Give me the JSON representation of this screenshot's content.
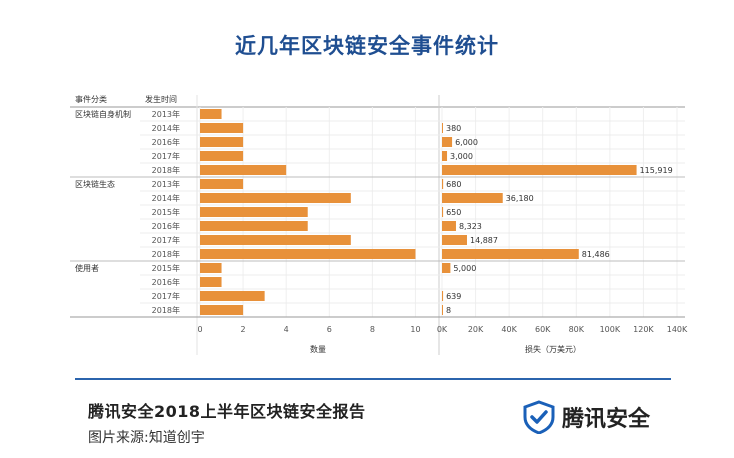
{
  "chart_data": {
    "type": "bar",
    "title": "近几年区块链安全事件统计",
    "row_headers": [
      "事件分类",
      "发生时间"
    ],
    "groups": [
      {
        "name": "区块链自身机制",
        "years": [
          "2013年",
          "2014年",
          "2016年",
          "2017年",
          "2018年"
        ]
      },
      {
        "name": "区块链生态",
        "years": [
          "2013年",
          "2014年",
          "2015年",
          "2016年",
          "2017年",
          "2018年"
        ]
      },
      {
        "name": "使用者",
        "years": [
          "2015年",
          "2016年",
          "2017年",
          "2018年"
        ]
      }
    ],
    "series": [
      {
        "name": "数量",
        "values": [
          1,
          2,
          2,
          2,
          4,
          2,
          7,
          5,
          5,
          7,
          10,
          1,
          1,
          3,
          2
        ]
      },
      {
        "name": "损失（万美元）",
        "values": [
          null,
          380,
          6000,
          3000,
          115919,
          680,
          36180,
          650,
          8323,
          14887,
          81486,
          5000,
          null,
          639,
          8
        ]
      }
    ],
    "value_labels": [
      "",
      "380",
      "6,000",
      "3,000",
      "115,919",
      "680",
      "36,180",
      "650",
      "8,323",
      "14,887",
      "81,486",
      "5,000",
      "",
      "639",
      "8"
    ],
    "count_axis": {
      "label": "数量",
      "range": [
        0,
        11
      ],
      "ticks": [
        0,
        2,
        4,
        6,
        8,
        10
      ],
      "tick_labels": [
        "0",
        "2",
        "4",
        "6",
        "8",
        "10"
      ]
    },
    "loss_axis": {
      "label": "损失（万美元）",
      "range": [
        0,
        140000
      ],
      "ticks": [
        0,
        20000,
        40000,
        60000,
        80000,
        100000,
        120000,
        140000
      ],
      "tick_labels": [
        "0K",
        "20K",
        "40K",
        "60K",
        "80K",
        "100K",
        "120K",
        "140K"
      ]
    },
    "bar_color": "#e8913a"
  },
  "footer": {
    "report_title": "腾讯安全2018上半年区块链安全报告",
    "source": "图片来源:知道创宇",
    "brand": "腾讯安全"
  },
  "colors": {
    "title": "#1f4e91",
    "rule": "#2b64ad",
    "logo": "#1a60b8"
  }
}
